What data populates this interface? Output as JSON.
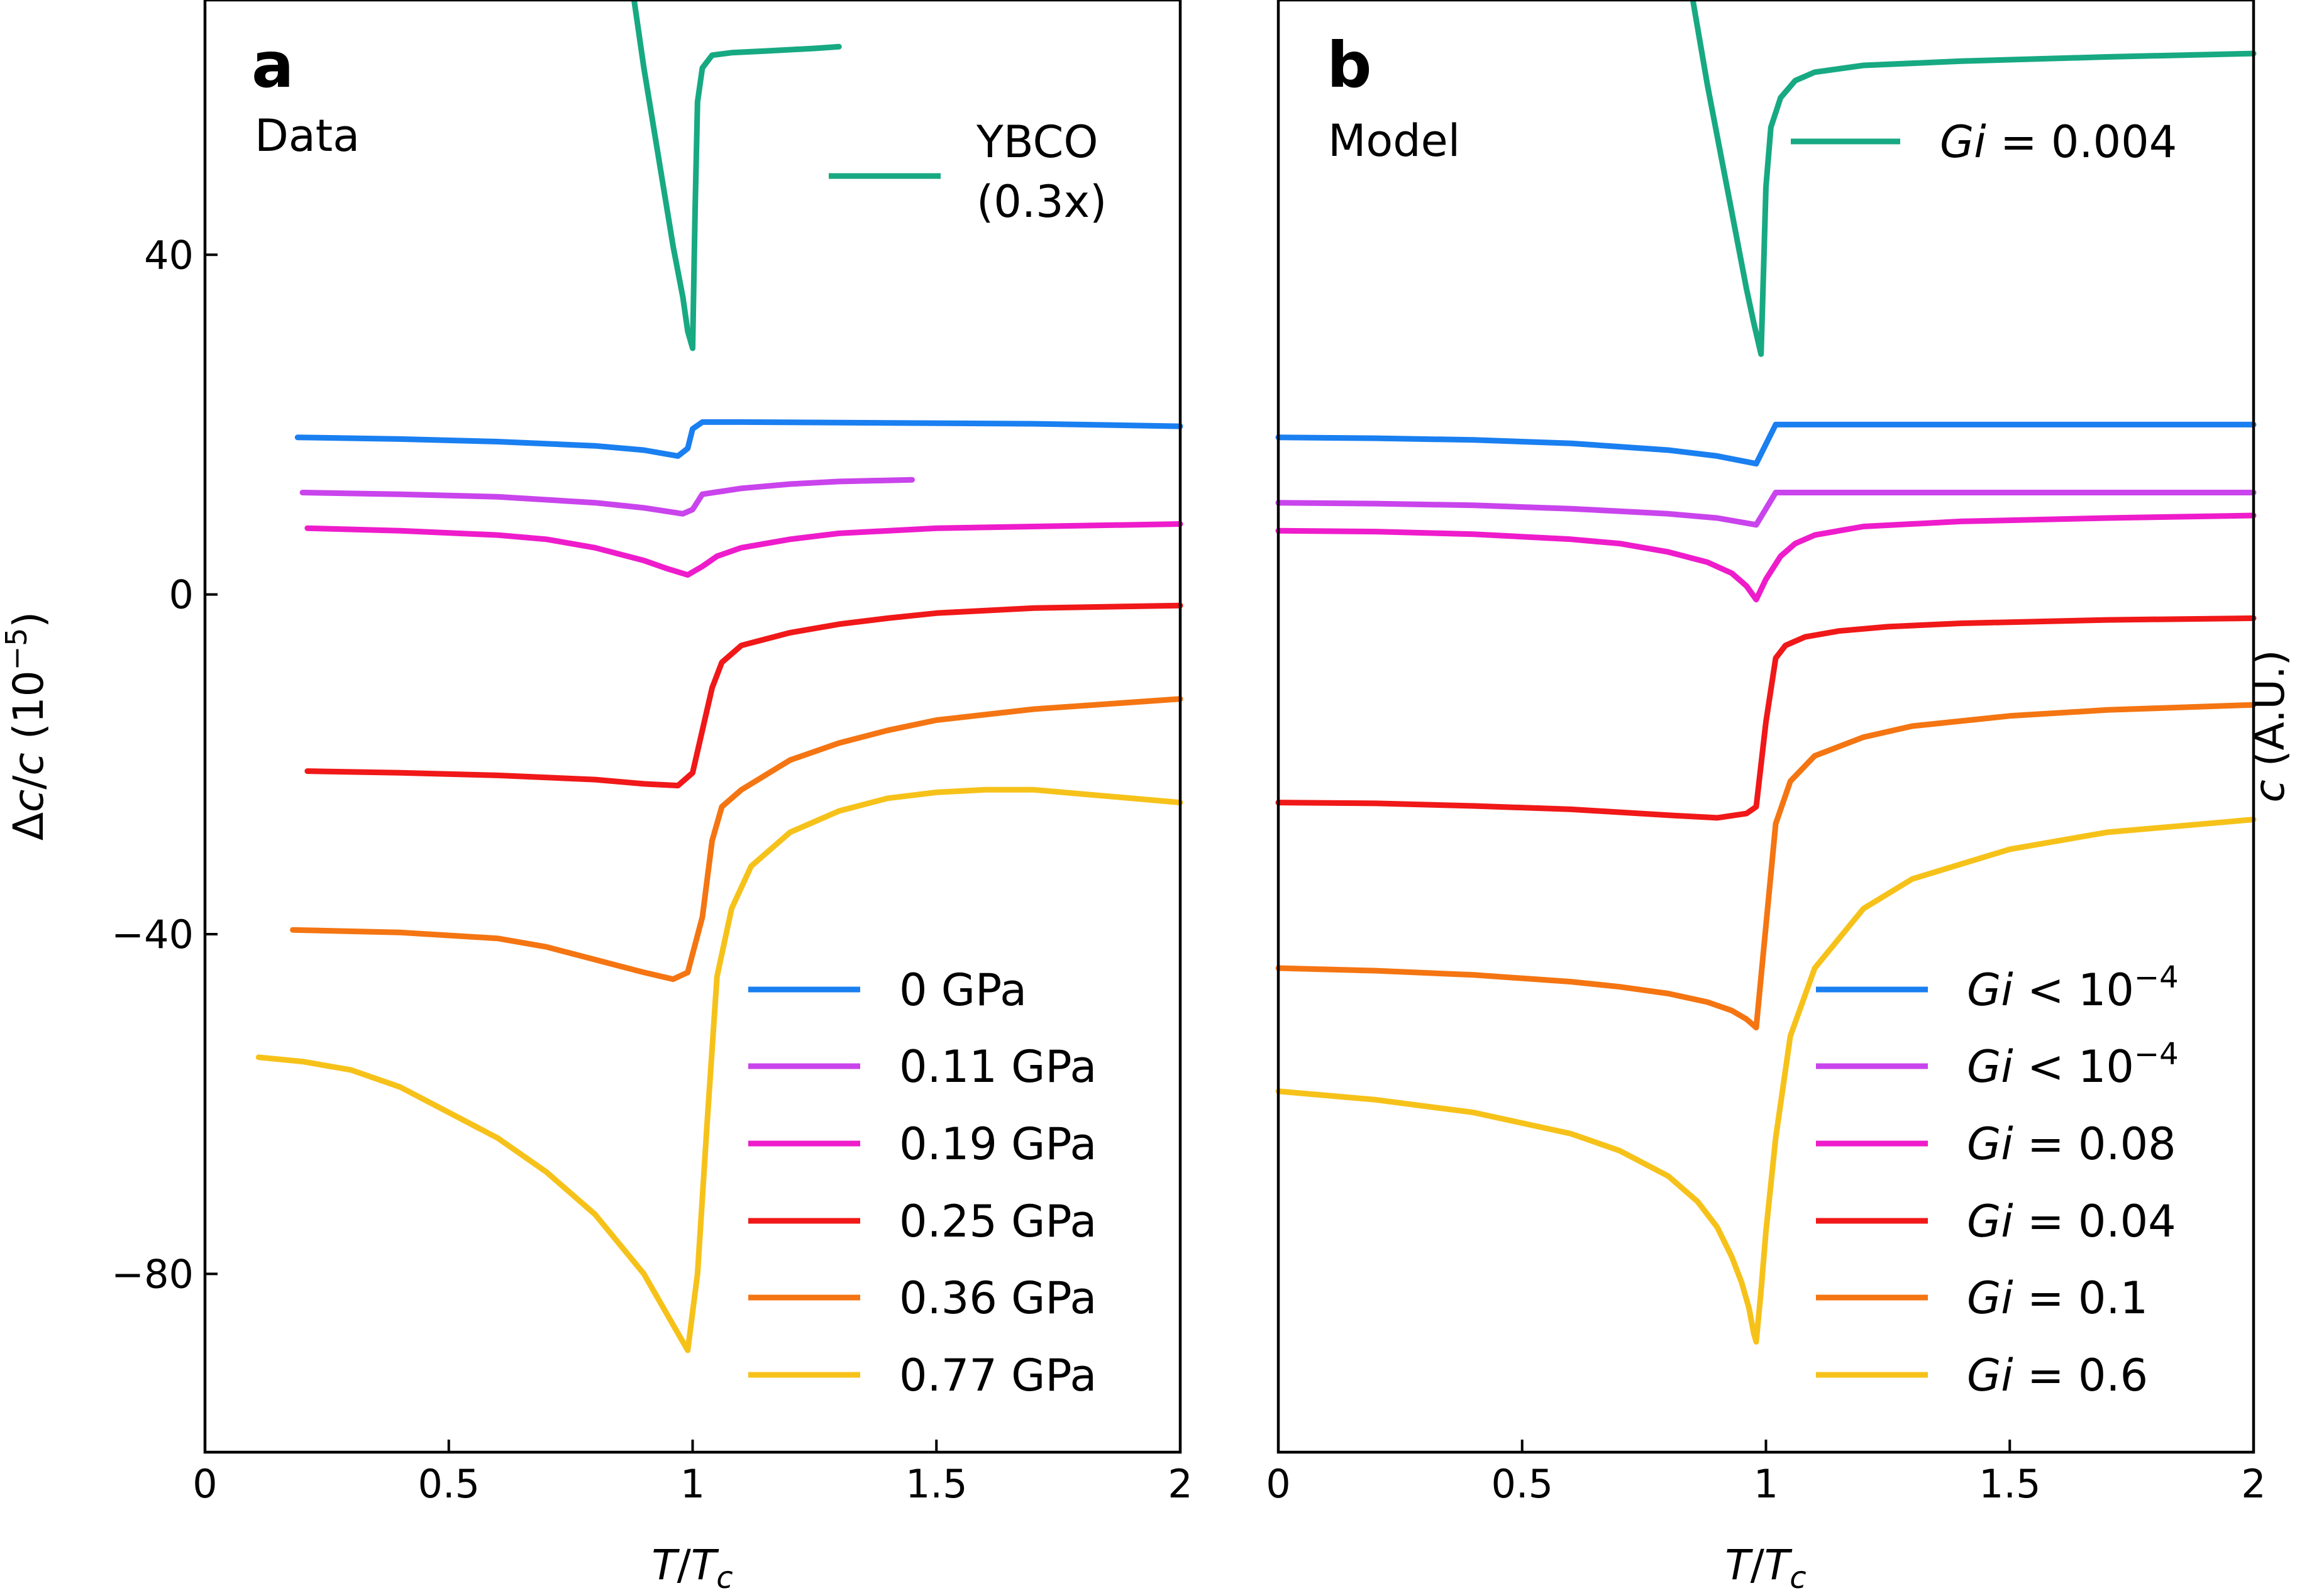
{
  "chart_data": [
    {
      "type": "line",
      "panel_letter": "a",
      "panel_title": "Data",
      "xlabel": "T/T_c",
      "xlabel_parts": [
        "T",
        "/",
        "T",
        "c"
      ],
      "ylabel": "Δc/c (10⁻⁵)",
      "ylabel_parts": [
        "Δ",
        "c",
        "/",
        "c",
        " (10",
        "−5",
        ")"
      ],
      "xlim": [
        0,
        2
      ],
      "ylim": [
        -101,
        70
      ],
      "xticks": [
        0,
        0.5,
        1,
        1.5,
        2
      ],
      "xtick_labels": [
        "0",
        "0.5",
        "1",
        "1.5",
        "2"
      ],
      "yticks": [
        40,
        0,
        -40,
        -80
      ],
      "ytick_labels": [
        "40",
        "0",
        "−40",
        "−80"
      ],
      "legend_top": {
        "position": "top-right",
        "entries": [
          {
            "label_lines": [
              "YBCO",
              "(0.3x)"
            ],
            "color": "#17a982"
          }
        ]
      },
      "legend_bottom": {
        "position": "bottom-right",
        "entries": [
          {
            "label": "0 GPa",
            "color": "#1a7ff0"
          },
          {
            "label": "0.11 GPa",
            "color": "#c944ec"
          },
          {
            "label": "0.19 GPa",
            "color": "#ee1ccb"
          },
          {
            "label": "0.25 GPa",
            "color": "#f01818"
          },
          {
            "label": "0.36 GPa",
            "color": "#f47512"
          },
          {
            "label": "0.77 GPa",
            "color": "#f6c21a"
          }
        ]
      },
      "series": [
        {
          "name": "YBCO (0.3x)",
          "color": "#17a982",
          "x": [
            0.88,
            0.9,
            0.92,
            0.94,
            0.96,
            0.98,
            0.99,
            1.0,
            1.005,
            1.01,
            1.02,
            1.04,
            1.08,
            1.15,
            1.25,
            1.3
          ],
          "y": [
            70,
            62,
            55,
            48,
            41,
            35,
            31,
            29,
            45,
            58,
            62,
            63.5,
            63.8,
            64,
            64.3,
            64.5
          ]
        },
        {
          "name": "0 GPa",
          "color": "#1a7ff0",
          "x": [
            0.19,
            0.4,
            0.6,
            0.8,
            0.9,
            0.97,
            0.99,
            1.0,
            1.02,
            1.1,
            1.4,
            1.7,
            2.0
          ],
          "y": [
            18.5,
            18.3,
            18.0,
            17.5,
            17.0,
            16.3,
            17.2,
            19.5,
            20.3,
            20.3,
            20.2,
            20.1,
            19.8
          ]
        },
        {
          "name": "0.11 GPa",
          "color": "#c944ec",
          "x": [
            0.2,
            0.4,
            0.6,
            0.8,
            0.9,
            0.98,
            1.0,
            1.02,
            1.1,
            1.2,
            1.3,
            1.45
          ],
          "y": [
            12.0,
            11.8,
            11.5,
            10.8,
            10.2,
            9.5,
            10.0,
            11.8,
            12.5,
            13.0,
            13.3,
            13.5
          ]
        },
        {
          "name": "0.19 GPa",
          "color": "#ee1ccb",
          "x": [
            0.21,
            0.4,
            0.6,
            0.7,
            0.8,
            0.9,
            0.95,
            0.99,
            1.02,
            1.05,
            1.1,
            1.2,
            1.3,
            1.5,
            1.7,
            2.0
          ],
          "y": [
            7.8,
            7.5,
            7.0,
            6.5,
            5.5,
            4.0,
            3.0,
            2.3,
            3.3,
            4.5,
            5.5,
            6.5,
            7.2,
            7.8,
            8.0,
            8.3
          ]
        },
        {
          "name": "0.25 GPa",
          "color": "#f01818",
          "x": [
            0.21,
            0.4,
            0.6,
            0.8,
            0.9,
            0.97,
            1.0,
            1.02,
            1.04,
            1.06,
            1.1,
            1.2,
            1.3,
            1.4,
            1.5,
            1.7,
            2.0
          ],
          "y": [
            -20.8,
            -21.0,
            -21.3,
            -21.8,
            -22.3,
            -22.5,
            -21.0,
            -16,
            -11,
            -8,
            -6,
            -4.5,
            -3.5,
            -2.8,
            -2.2,
            -1.6,
            -1.3
          ]
        },
        {
          "name": "0.36 GPa",
          "color": "#f47512",
          "x": [
            0.18,
            0.4,
            0.6,
            0.7,
            0.8,
            0.9,
            0.96,
            0.99,
            1.02,
            1.04,
            1.06,
            1.1,
            1.2,
            1.3,
            1.4,
            1.5,
            1.7,
            2.0
          ],
          "y": [
            -39.5,
            -39.8,
            -40.5,
            -41.5,
            -43,
            -44.5,
            -45.3,
            -44.5,
            -38,
            -29,
            -25,
            -23,
            -19.5,
            -17.5,
            -16,
            -14.8,
            -13.5,
            -12.3
          ]
        },
        {
          "name": "0.77 GPa",
          "color": "#f6c21a",
          "x": [
            0.11,
            0.2,
            0.3,
            0.4,
            0.5,
            0.6,
            0.7,
            0.8,
            0.9,
            0.95,
            0.99,
            1.01,
            1.03,
            1.05,
            1.08,
            1.12,
            1.2,
            1.3,
            1.4,
            1.5,
            1.6,
            1.7,
            1.8,
            1.9,
            2.0
          ],
          "y": [
            -54.5,
            -55,
            -56,
            -58,
            -61,
            -64,
            -68,
            -73,
            -80,
            -85,
            -89,
            -80,
            -62,
            -45,
            -37,
            -32,
            -28,
            -25.5,
            -24,
            -23.3,
            -23,
            -23,
            -23.5,
            -24,
            -24.5
          ]
        }
      ]
    },
    {
      "type": "line",
      "panel_letter": "b",
      "panel_title": "Model",
      "xlabel": "T/T_c",
      "xlabel_parts": [
        "T",
        "/",
        "T",
        "c"
      ],
      "ylabel": "c (A.U.)",
      "ylabel_parts": [
        "c",
        " (A.U.)"
      ],
      "xlim": [
        0,
        2
      ],
      "ylim": [
        -101,
        70
      ],
      "xticks": [
        0,
        0.5,
        1,
        1.5,
        2
      ],
      "xtick_labels": [
        "0",
        "0.5",
        "1",
        "1.5",
        "2"
      ],
      "legend_top": {
        "position": "top-right",
        "entries": [
          {
            "label_parts": [
              "Gi",
              " = ",
              "0.004"
            ],
            "color": "#17a982"
          }
        ]
      },
      "legend_bottom": {
        "position": "bottom-right",
        "entries": [
          {
            "label_parts": [
              "Gi",
              " < ",
              "10",
              "−4"
            ],
            "color": "#1a7ff0"
          },
          {
            "label_parts": [
              "Gi",
              " < ",
              "10",
              "−4"
            ],
            "color": "#c944ec"
          },
          {
            "label_parts": [
              "Gi",
              " = ",
              "0.08"
            ],
            "color": "#ee1ccb"
          },
          {
            "label_parts": [
              "Gi",
              " = ",
              "0.04"
            ],
            "color": "#f01818"
          },
          {
            "label_parts": [
              "Gi",
              " = ",
              "0.1"
            ],
            "color": "#f47512"
          },
          {
            "label_parts": [
              "Gi",
              " = ",
              "0.6"
            ],
            "color": "#f6c21a"
          }
        ]
      },
      "series": [
        {
          "name": "Gi = 0.004",
          "color": "#17a982",
          "x": [
            0.85,
            0.88,
            0.91,
            0.94,
            0.96,
            0.975,
            0.985,
            0.99,
            0.995,
            1.0,
            1.01,
            1.03,
            1.06,
            1.1,
            1.2,
            1.4,
            1.7,
            2.0
          ],
          "y": [
            70,
            60,
            51,
            42,
            36,
            32,
            29.5,
            28.3,
            38,
            48,
            55,
            58.5,
            60.5,
            61.5,
            62.3,
            62.8,
            63.3,
            63.7
          ]
        },
        {
          "name": "Gi < 10^-4",
          "color": "#1a7ff0",
          "x": [
            0,
            0.2,
            0.4,
            0.6,
            0.8,
            0.9,
            0.98,
            1.02,
            1.1,
            1.5,
            2.0
          ],
          "y": [
            18.5,
            18.4,
            18.2,
            17.8,
            17.0,
            16.3,
            15.4,
            20.0,
            20.0,
            20.0,
            20.0
          ]
        },
        {
          "name": "Gi < 10^-4",
          "color": "#c944ec",
          "x": [
            0,
            0.2,
            0.4,
            0.6,
            0.8,
            0.9,
            0.98,
            1.02,
            1.1,
            1.5,
            2.0
          ],
          "y": [
            10.8,
            10.7,
            10.5,
            10.1,
            9.5,
            9.0,
            8.2,
            12.0,
            12.0,
            12.0,
            12.0
          ]
        },
        {
          "name": "Gi = 0.08",
          "color": "#ee1ccb",
          "x": [
            0,
            0.2,
            0.4,
            0.6,
            0.7,
            0.8,
            0.88,
            0.93,
            0.96,
            0.98,
            1.0,
            1.03,
            1.06,
            1.1,
            1.2,
            1.4,
            1.7,
            2.0
          ],
          "y": [
            7.5,
            7.4,
            7.1,
            6.5,
            6.0,
            5.0,
            3.8,
            2.5,
            1.0,
            -0.6,
            1.8,
            4.5,
            6.0,
            7.0,
            8.0,
            8.6,
            9.0,
            9.3
          ]
        },
        {
          "name": "Gi = 0.04",
          "color": "#f01818",
          "x": [
            0,
            0.2,
            0.4,
            0.6,
            0.8,
            0.9,
            0.96,
            0.98,
            1.0,
            1.02,
            1.04,
            1.08,
            1.15,
            1.25,
            1.4,
            1.7,
            2.0
          ],
          "y": [
            -24.5,
            -24.6,
            -24.9,
            -25.3,
            -26.0,
            -26.3,
            -25.8,
            -25.0,
            -15,
            -7.5,
            -6.0,
            -5.0,
            -4.3,
            -3.8,
            -3.4,
            -3.0,
            -2.8
          ]
        },
        {
          "name": "Gi = 0.1",
          "color": "#f47512",
          "x": [
            0,
            0.2,
            0.4,
            0.6,
            0.7,
            0.8,
            0.88,
            0.93,
            0.96,
            0.98,
            1.0,
            1.02,
            1.05,
            1.1,
            1.2,
            1.3,
            1.5,
            1.7,
            2.0
          ],
          "y": [
            -44,
            -44.3,
            -44.8,
            -45.6,
            -46.2,
            -47,
            -48,
            -49,
            -50,
            -51,
            -39,
            -27,
            -22,
            -19,
            -16.8,
            -15.5,
            -14.3,
            -13.6,
            -13
          ]
        },
        {
          "name": "Gi = 0.6",
          "color": "#f6c21a",
          "x": [
            0,
            0.2,
            0.4,
            0.6,
            0.7,
            0.8,
            0.86,
            0.9,
            0.93,
            0.95,
            0.965,
            0.975,
            0.98,
            0.99,
            1.0,
            1.02,
            1.05,
            1.1,
            1.2,
            1.3,
            1.5,
            1.7,
            2.0
          ],
          "y": [
            -58.5,
            -59.5,
            -61,
            -63.5,
            -65.5,
            -68.5,
            -71.5,
            -74.5,
            -78,
            -81,
            -84,
            -87,
            -88,
            -82,
            -75,
            -64,
            -52,
            -44,
            -37,
            -33.5,
            -30,
            -28,
            -26.5
          ]
        }
      ]
    }
  ]
}
